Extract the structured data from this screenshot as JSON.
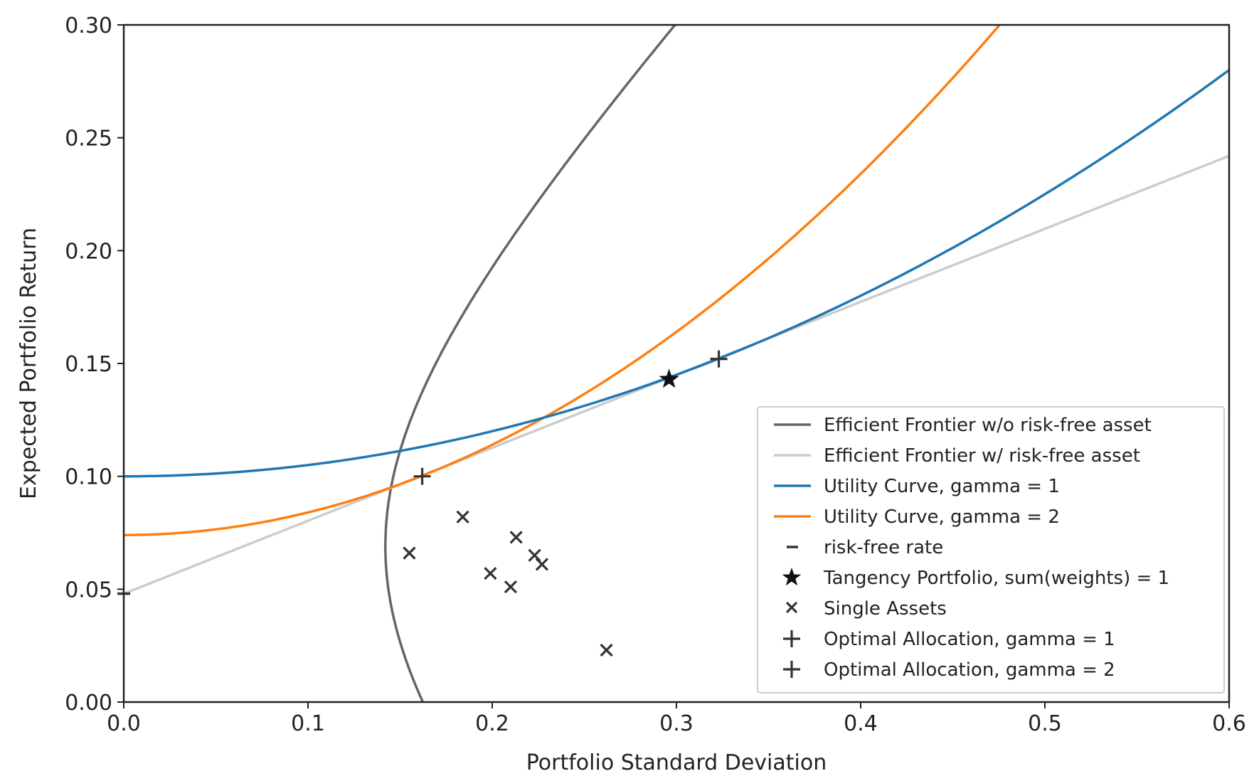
{
  "chart_data": {
    "type": "line",
    "title": "",
    "xlabel": "Portfolio Standard Deviation",
    "ylabel": "Expected Portfolio Return",
    "xlim": [
      0.0,
      0.6
    ],
    "ylim": [
      0.0,
      0.3
    ],
    "xticks": [
      "0.0",
      "0.1",
      "0.2",
      "0.3",
      "0.4",
      "0.5",
      "0.6"
    ],
    "yticks": [
      "0.00",
      "0.05",
      "0.10",
      "0.15",
      "0.20",
      "0.25",
      "0.30"
    ],
    "grid": false,
    "legend_position": "lower-right",
    "colors": {
      "frontier_no_rf": "#666666",
      "frontier_rf": "#cccccc",
      "utility_g1": "#1f77b4",
      "utility_g2": "#ff7f0e",
      "markers": "#333333"
    },
    "series": [
      {
        "name": "Efficient Frontier w/o risk-free asset",
        "kind": "hyperbola",
        "min_variance_sd": 0.142,
        "min_variance_return": 0.069,
        "curvature": 1.3,
        "return_range": [
          0.0,
          0.3
        ]
      },
      {
        "name": "Efficient Frontier w/ risk-free asset",
        "kind": "line",
        "x": [
          0.0,
          0.6
        ],
        "y": [
          0.048,
          0.242
        ]
      },
      {
        "name": "Utility Curve, gamma = 1",
        "kind": "quadratic",
        "intercept": 0.1,
        "gamma": 1,
        "coef": 0.5
      },
      {
        "name": "Utility Curve, gamma = 2",
        "kind": "quadratic",
        "intercept": 0.074,
        "gamma": 2,
        "coef": 1.0
      }
    ],
    "points": {
      "risk_free_rate": {
        "name": "risk-free rate",
        "x": 0.0,
        "y": 0.048
      },
      "tangency_portfolio": {
        "name": "Tangency Portfolio, sum(weights) = 1",
        "x": 0.296,
        "y": 0.143
      },
      "single_assets": {
        "name": "Single Assets",
        "x": [
          0.155,
          0.184,
          0.199,
          0.21,
          0.213,
          0.223,
          0.227,
          0.262
        ],
        "y": [
          0.066,
          0.082,
          0.057,
          0.051,
          0.073,
          0.065,
          0.061,
          0.023
        ]
      },
      "optimal_g1": {
        "name": "Optimal Allocation, gamma = 1",
        "x": 0.323,
        "y": 0.152
      },
      "optimal_g2": {
        "name": "Optimal Allocation, gamma = 2",
        "x": 0.162,
        "y": 0.1
      }
    }
  }
}
